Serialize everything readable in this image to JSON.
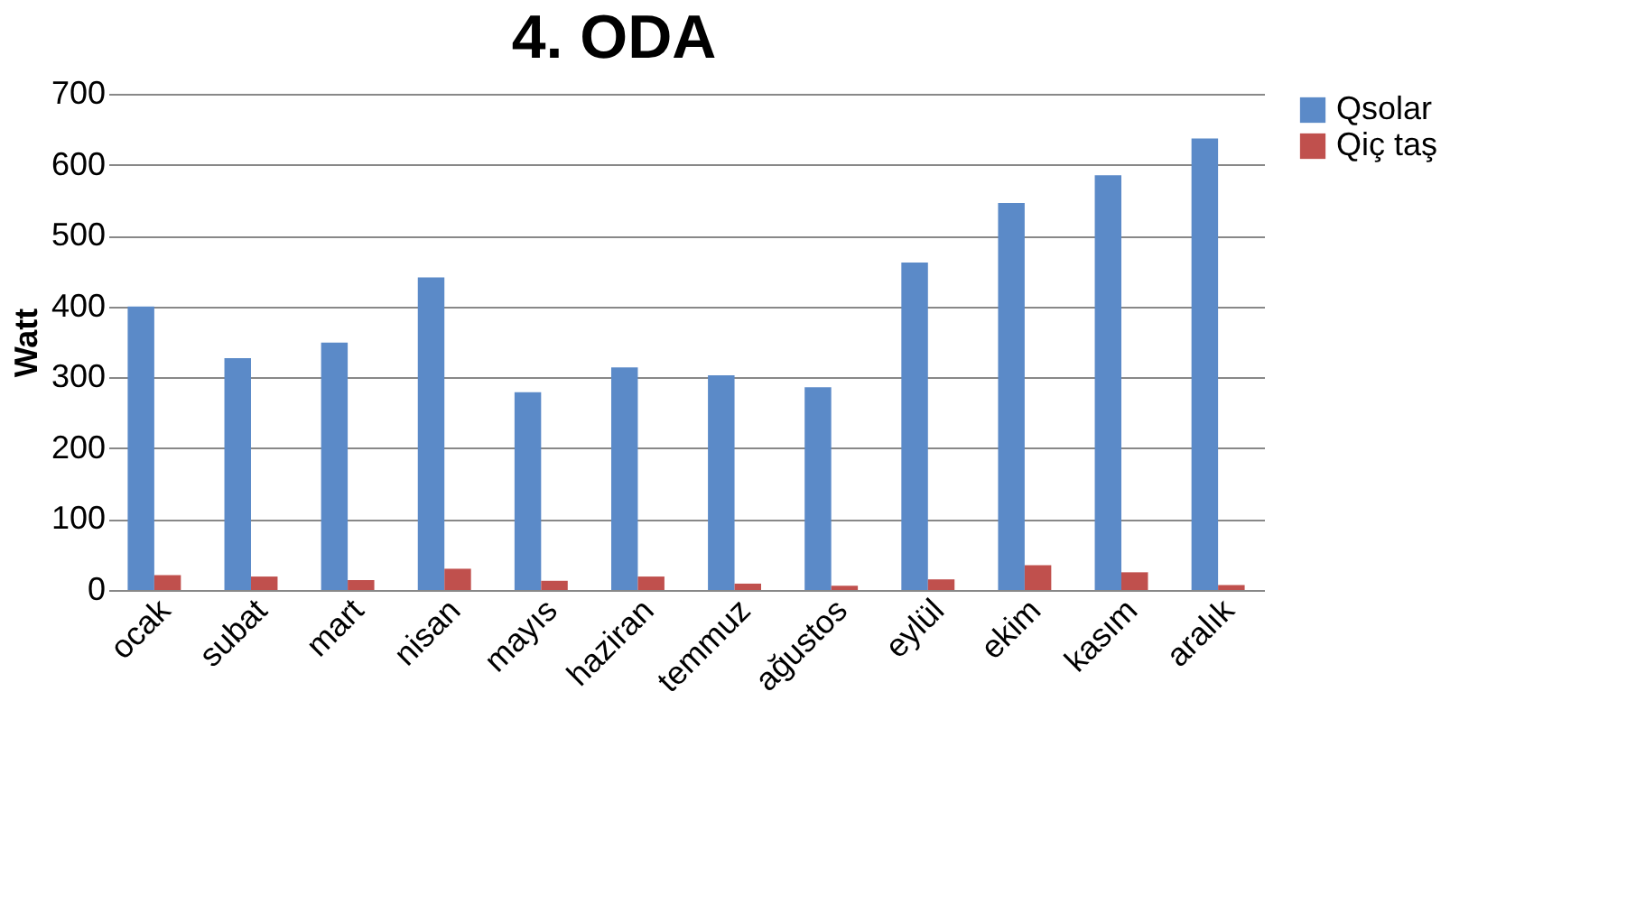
{
  "chart_data": {
    "type": "bar",
    "title": "4. ODA",
    "ylabel": "Watt",
    "categories": [
      "ocak",
      "subat",
      "mart",
      "nisan",
      "mayıs",
      "haziran",
      "temmuz",
      "ağustos",
      "eylül",
      "ekim",
      "kasım",
      "aralık"
    ],
    "series": [
      {
        "name": "Qsolar",
        "color": "#5b8ac8",
        "values": [
          400,
          327,
          349,
          441,
          279,
          314,
          303,
          286,
          462,
          546,
          585,
          637
        ]
      },
      {
        "name": "Qiç taş",
        "color": "#c0504d",
        "values": [
          21,
          19,
          14,
          30,
          13,
          19,
          9,
          6,
          15,
          35,
          25,
          7
        ]
      }
    ],
    "ylim": [
      0,
      700
    ],
    "yticks": [
      0,
      100,
      200,
      300,
      400,
      500,
      600,
      700
    ],
    "grid": "y",
    "legend": "right"
  }
}
